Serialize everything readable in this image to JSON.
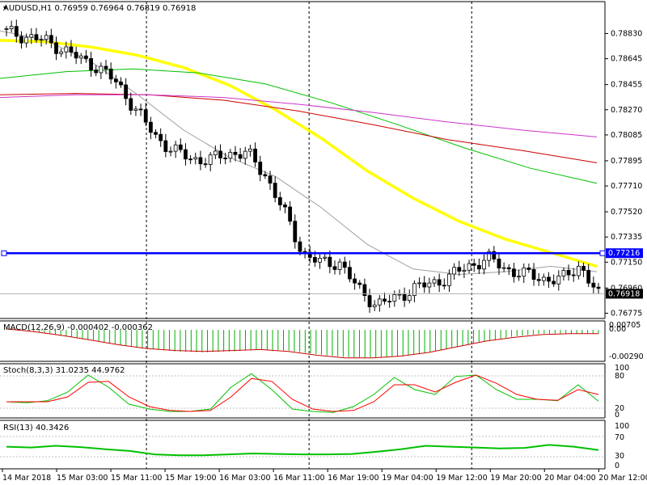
{
  "chart_data": [
    {
      "type": "candlestick",
      "title": "AUDUSD,H1  0.76959 0.76964 0.76819 0.76918",
      "ylim": [
        0.7676,
        0.7891
      ],
      "y_ticks": [
        "0.78830",
        "0.78645",
        "0.78455",
        "0.78270",
        "0.78085",
        "0.77895",
        "0.77710",
        "0.77520",
        "0.77335",
        "0.77150",
        "0.76960",
        "0.76775"
      ],
      "x_ticks": [
        "14 Mar 2018",
        "15 Mar 03:00",
        "15 Mar 11:00",
        "15 Mar 19:00",
        "16 Mar 03:00",
        "16 Mar 11:00",
        "16 Mar 19:00",
        "19 Mar 04:00",
        "19 Mar 12:00",
        "19 Mar 20:00",
        "20 Mar 04:00",
        "20 Mar 12:00"
      ],
      "candles_close": [
        0.7884,
        0.7881,
        0.7878,
        0.7872,
        0.7864,
        0.7858,
        0.7846,
        0.7827,
        0.7808,
        0.7797,
        0.7791,
        0.779,
        0.7795,
        0.7795,
        0.7779,
        0.7752,
        0.7722,
        0.7714,
        0.7715,
        0.7695,
        0.7684,
        0.7688,
        0.7696,
        0.7699,
        0.7705,
        0.7712,
        0.7718,
        0.771,
        0.7706,
        0.7703,
        0.7702,
        0.7713,
        0.769
      ],
      "horizontal_level": {
        "value": 0.77216,
        "label": "0.77216",
        "color": "#0000ff"
      },
      "current_price": {
        "value": 0.76918,
        "label": "0.76918"
      },
      "moving_averages": [
        {
          "color": "#ffff00",
          "values": [
            0.7878,
            0.7877,
            0.7873,
            0.7867,
            0.7858,
            0.7845,
            0.7827,
            0.7806,
            0.7782,
            0.7762,
            0.7745,
            0.7732,
            0.7722,
            0.7712
          ]
        },
        {
          "color": "#00c000",
          "values": [
            0.785,
            0.7855,
            0.7857,
            0.7854,
            0.7846,
            0.7832,
            0.7816,
            0.7799,
            0.7784,
            0.7773
          ]
        },
        {
          "color": "#cc0000",
          "values": [
            0.7838,
            0.7839,
            0.7838,
            0.7834,
            0.7826,
            0.7816,
            0.7805,
            0.7797,
            0.7788
          ]
        },
        {
          "color": "#cc33cc",
          "values": [
            0.7836,
            0.7838,
            0.7838,
            0.7836,
            0.7831,
            0.7825,
            0.7818,
            0.7812,
            0.7807
          ]
        },
        {
          "color": "#a0a0a0",
          "values": [
            0.7885,
            0.7878,
            0.7862,
            0.7838,
            0.7812,
            0.7792,
            0.7778,
            0.7755,
            0.7728,
            0.771,
            0.7706,
            0.7708,
            0.7712,
            0.7708
          ]
        }
      ]
    },
    {
      "type": "histogram",
      "title": "MACD(12,26,9) -0.000402 -0.000362",
      "y_ticks": [
        "0.00705",
        "0.00",
        "-0.00290"
      ],
      "hist_values": [
        0.0002,
        -0.0002,
        -0.0006,
        -0.0011,
        -0.0016,
        -0.002,
        -0.0023,
        -0.0024,
        -0.0023,
        -0.0021,
        -0.0022,
        -0.0026,
        -0.0029,
        -0.003,
        -0.0028,
        -0.0024,
        -0.0018,
        -0.0012,
        -0.0007,
        -0.0004,
        -0.0004,
        -0.0004
      ],
      "signal_values": [
        0.0001,
        -0.0002,
        -0.0006,
        -0.0011,
        -0.0016,
        -0.002,
        -0.0022,
        -0.0023,
        -0.0022,
        -0.0021,
        -0.0023,
        -0.0027,
        -0.003,
        -0.003,
        -0.0028,
        -0.0024,
        -0.0018,
        -0.0012,
        -0.0008,
        -0.0005,
        -0.0004,
        -0.0004
      ]
    },
    {
      "type": "line",
      "title": "Stoch(8,3,3) 31.0235 44.9762",
      "y_ticks": [
        "100",
        "80",
        "20",
        "0"
      ],
      "series": [
        {
          "color": "#00c000",
          "values": [
            30,
            28,
            32,
            50,
            85,
            60,
            25,
            15,
            10,
            10,
            15,
            60,
            88,
            55,
            15,
            10,
            8,
            20,
            45,
            80,
            55,
            45,
            82,
            85,
            55,
            35,
            35,
            32,
            65,
            31
          ]
        },
        {
          "color": "#ff0000",
          "values": [
            30,
            30,
            30,
            40,
            70,
            72,
            40,
            20,
            12,
            10,
            12,
            40,
            78,
            72,
            35,
            15,
            10,
            12,
            30,
            65,
            65,
            50,
            70,
            85,
            68,
            45,
            35,
            33,
            55,
            45
          ]
        }
      ]
    },
    {
      "type": "line",
      "title": "RSI(13) 40.3426",
      "y_ticks": [
        "100",
        "70",
        "30",
        "0"
      ],
      "series": [
        {
          "color": "#00c000",
          "values": [
            48,
            46,
            50,
            47,
            42,
            38,
            30,
            28,
            28,
            30,
            32,
            31,
            30,
            30,
            31,
            36,
            42,
            50,
            48,
            46,
            44,
            45,
            52,
            48,
            40
          ]
        }
      ]
    }
  ]
}
